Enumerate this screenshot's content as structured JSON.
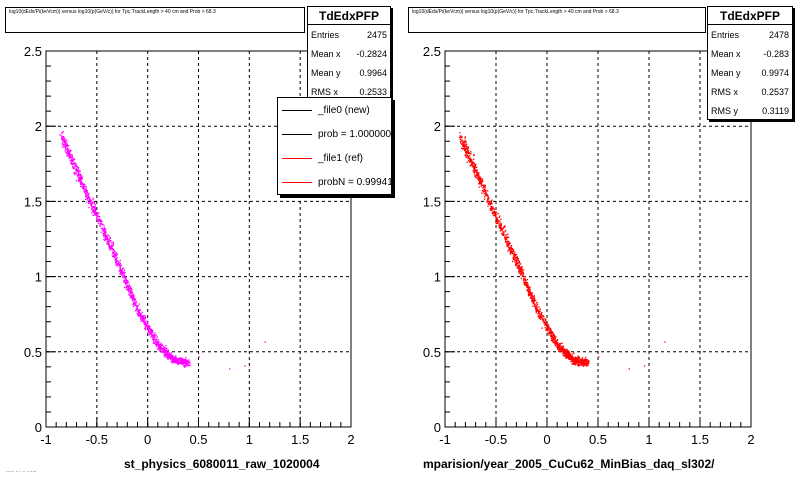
{
  "footer_note": "...... .. . .. .......",
  "chart_data": [
    {
      "type": "scatter",
      "title": "log10(dEdx/Pi(keVcm)) versus log10(p(GeV/c)) for Tpc.TrackLength > 40 cm and Prob > 68.3",
      "xlabel": "st_physics_6080011_raw_1020004",
      "ylabel": "",
      "xlim": [
        -1,
        2
      ],
      "ylim": [
        0,
        2.5
      ],
      "grid": true,
      "x_ticks": [
        "-1",
        "-0.5",
        "0",
        "0.5",
        "1",
        "1.5",
        "2"
      ],
      "y_ticks": [
        "0",
        "0.5",
        "1",
        "1.5",
        "2",
        "2.5"
      ],
      "color": "#ff00ff",
      "band": [
        [
          -0.85,
          1.93
        ],
        [
          -0.7,
          1.7
        ],
        [
          -0.5,
          1.4
        ],
        [
          -0.3,
          1.1
        ],
        [
          -0.1,
          0.78
        ],
        [
          0.1,
          0.55
        ],
        [
          0.25,
          0.45
        ],
        [
          0.4,
          0.43
        ]
      ],
      "stats": {
        "name": "TdEdxPFP",
        "rows": [
          {
            "label": "Entries",
            "value": "2475"
          },
          {
            "label": "Mean x",
            "value": "-0.2824"
          },
          {
            "label": "Mean y",
            "value": "0.9964"
          },
          {
            "label": "RMS x",
            "value": "0.2533"
          }
        ]
      },
      "legend": [
        {
          "label": "_file0 (new)",
          "color": "#000000"
        },
        {
          "label": "prob = 1.000000",
          "color": "#000000"
        },
        {
          "label": "_file1 (ref)",
          "color": "#ff0000"
        },
        {
          "label": "probN = 0.999412",
          "color": "#ff0000"
        }
      ]
    },
    {
      "type": "scatter",
      "title": "log10(dEdx/Pi(keVcm)) versus log10(p(GeV/c)) for Tpc.TrackLength > 40 cm and Prob > 68.3",
      "xlabel": "mparision/year_2005_CuCu62_MinBias_daq_sl302/",
      "ylabel": "",
      "xlim": [
        -1,
        2
      ],
      "ylim": [
        0,
        2.5
      ],
      "grid": true,
      "x_ticks": [
        "-1",
        "-0.5",
        "0",
        "0.5",
        "1",
        "1.5",
        "2"
      ],
      "y_ticks": [
        "0",
        "0.5",
        "1",
        "1.5",
        "2",
        "2.5"
      ],
      "color": "#ff0000",
      "band": [
        [
          -0.85,
          1.93
        ],
        [
          -0.7,
          1.7
        ],
        [
          -0.5,
          1.4
        ],
        [
          -0.3,
          1.1
        ],
        [
          -0.1,
          0.78
        ],
        [
          0.1,
          0.55
        ],
        [
          0.25,
          0.45
        ],
        [
          0.4,
          0.43
        ]
      ],
      "stats": {
        "name": "TdEdxPFP",
        "rows": [
          {
            "label": "Entries",
            "value": "2478"
          },
          {
            "label": "Mean x",
            "value": "-0.283"
          },
          {
            "label": "Mean y",
            "value": "0.9974"
          },
          {
            "label": "RMS x",
            "value": "0.2537"
          },
          {
            "label": "RMS y",
            "value": "0.3119"
          }
        ]
      }
    }
  ]
}
